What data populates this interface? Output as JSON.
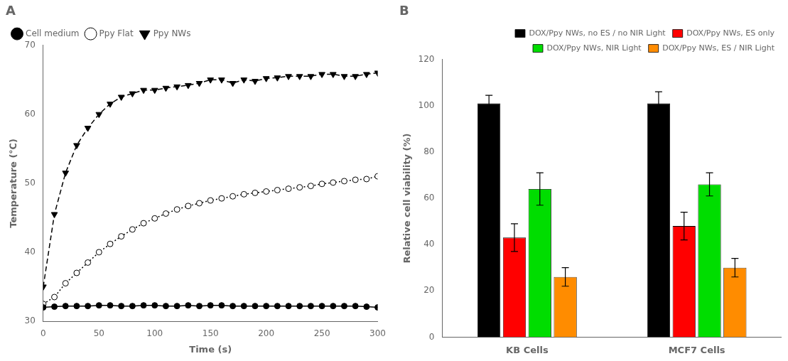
{
  "chart_data": [
    {
      "type": "line",
      "title": "A",
      "xlabel": "Time (s)",
      "ylabel": "Temperature (℃)",
      "xlim": [
        0,
        300
      ],
      "ylim": [
        30,
        70
      ],
      "xticks": [
        0,
        50,
        100,
        150,
        200,
        250,
        300
      ],
      "yticks": [
        30,
        40,
        50,
        60,
        70
      ],
      "grid": false,
      "legend": "upper left",
      "x": [
        0,
        10,
        20,
        30,
        40,
        50,
        60,
        70,
        80,
        90,
        100,
        110,
        120,
        130,
        140,
        150,
        160,
        170,
        180,
        190,
        200,
        210,
        220,
        230,
        240,
        250,
        260,
        270,
        280,
        290,
        300
      ],
      "series": [
        {
          "name": "Cell medium",
          "color": "#000000",
          "marker": "circle",
          "line_style": "solid",
          "values": [
            32.0,
            32.1,
            32.2,
            32.2,
            32.2,
            32.3,
            32.3,
            32.2,
            32.2,
            32.3,
            32.3,
            32.2,
            32.2,
            32.3,
            32.2,
            32.3,
            32.3,
            32.2,
            32.2,
            32.2,
            32.2,
            32.2,
            32.2,
            32.2,
            32.2,
            32.2,
            32.2,
            32.2,
            32.2,
            32.1,
            32.0
          ]
        },
        {
          "name": "Ppy Flat",
          "color": "#000000",
          "marker": "open_circle",
          "line_style": "dotted",
          "values": [
            32.5,
            33.5,
            35.5,
            37.0,
            38.5,
            40.0,
            41.2,
            42.3,
            43.3,
            44.2,
            44.9,
            45.6,
            46.2,
            46.7,
            47.1,
            47.5,
            47.8,
            48.1,
            48.4,
            48.6,
            48.8,
            49.0,
            49.2,
            49.4,
            49.6,
            49.9,
            50.1,
            50.3,
            50.5,
            50.6,
            51.0
          ]
        },
        {
          "name": "Ppy NWs",
          "color": "#000000",
          "marker": "triangle_down",
          "line_style": "dashed",
          "values": [
            35.0,
            45.5,
            51.5,
            55.5,
            58.0,
            60.0,
            61.5,
            62.5,
            63.0,
            63.5,
            63.5,
            63.8,
            64.0,
            64.2,
            64.5,
            65.0,
            65.0,
            64.5,
            65.0,
            64.8,
            65.2,
            65.3,
            65.5,
            65.5,
            65.5,
            65.8,
            65.8,
            65.5,
            65.5,
            65.8,
            66.0
          ]
        }
      ]
    },
    {
      "type": "bar",
      "title": "B",
      "ylabel": "Relative cell viability (%)",
      "ylim": [
        0,
        120
      ],
      "yticks": [
        0,
        20,
        40,
        60,
        80,
        100,
        120
      ],
      "grid": false,
      "legend": "upper right",
      "categories": [
        "KB Cells",
        "MCF7 Cells"
      ],
      "series": [
        {
          "name": "DOX/Ppy NWs, no ES / no NIR Light",
          "color": "#000000",
          "values": [
            101,
            101
          ],
          "errors": [
            3.5,
            5
          ]
        },
        {
          "name": "DOX/Ppy NWs, ES only",
          "color": "#ff0000",
          "values": [
            43,
            48
          ],
          "errors": [
            6,
            6
          ]
        },
        {
          "name": "DOX/Ppy NWs, NIR Light",
          "color": "#00dd00",
          "values": [
            64,
            66
          ],
          "errors": [
            7,
            5
          ]
        },
        {
          "name": "DOX/Ppy NWs, ES / NIR Light",
          "color": "#ff8c00",
          "values": [
            26,
            30
          ],
          "errors": [
            4,
            4
          ]
        }
      ]
    }
  ]
}
